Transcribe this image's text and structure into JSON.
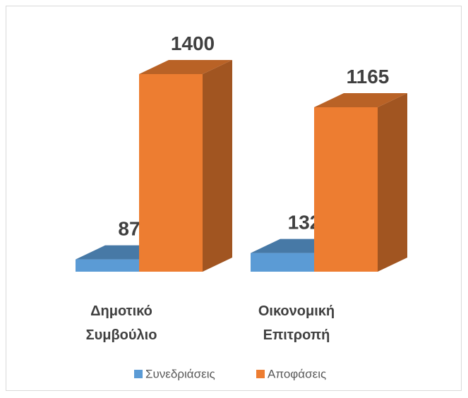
{
  "chart_data": {
    "type": "bar3d",
    "categories": [
      "Δημοτικό Συμβούλιο",
      "Οικονομική Επιτροπή"
    ],
    "series": [
      {
        "name": "Συνεδριάσεις",
        "color": "#5b9bd5",
        "values": [
          87,
          132
        ]
      },
      {
        "name": "Αποφάσεις",
        "color": "#ed7d31",
        "values": [
          1400,
          1165
        ]
      }
    ],
    "legend": "bottom"
  }
}
